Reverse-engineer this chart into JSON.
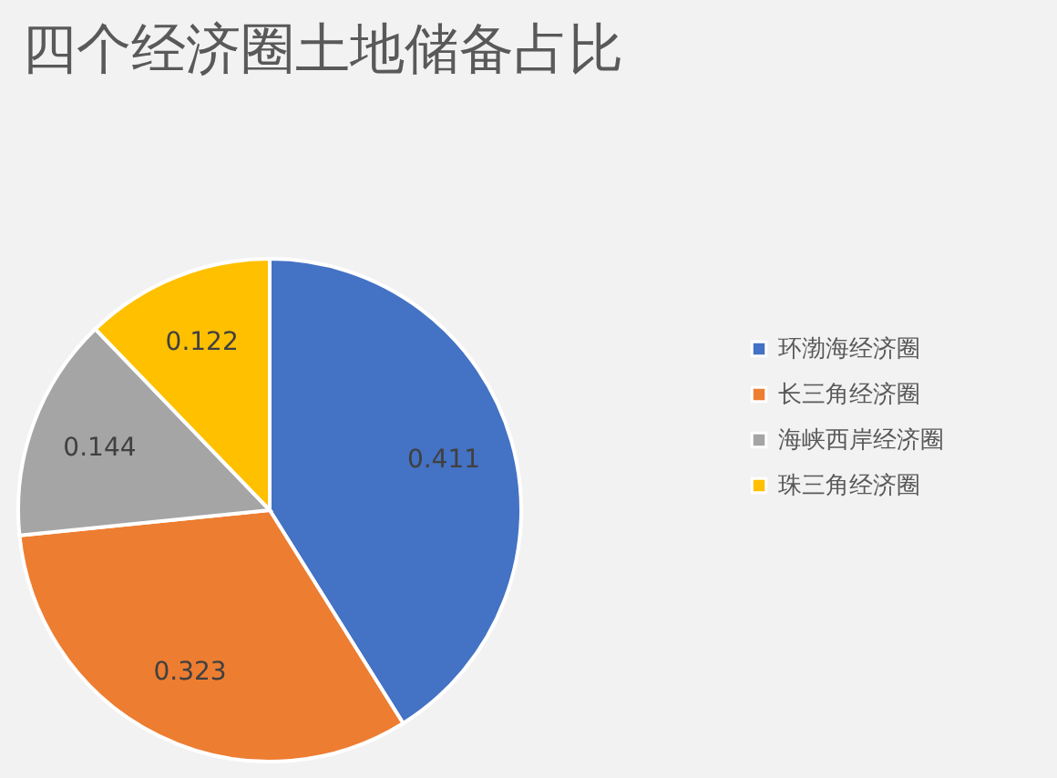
{
  "chart_data": {
    "type": "pie",
    "title": "四个经济圈土地储备占比",
    "categories": [
      "环渤海经济圈",
      "长三角经济圈",
      "海峡西岸经济圈",
      "珠三角经济圈"
    ],
    "values": [
      0.411,
      0.323,
      0.144,
      0.122
    ],
    "colors": [
      "#4472c4",
      "#ed7d31",
      "#a5a5a5",
      "#ffc000"
    ],
    "data_labels": true,
    "legend": "right"
  }
}
